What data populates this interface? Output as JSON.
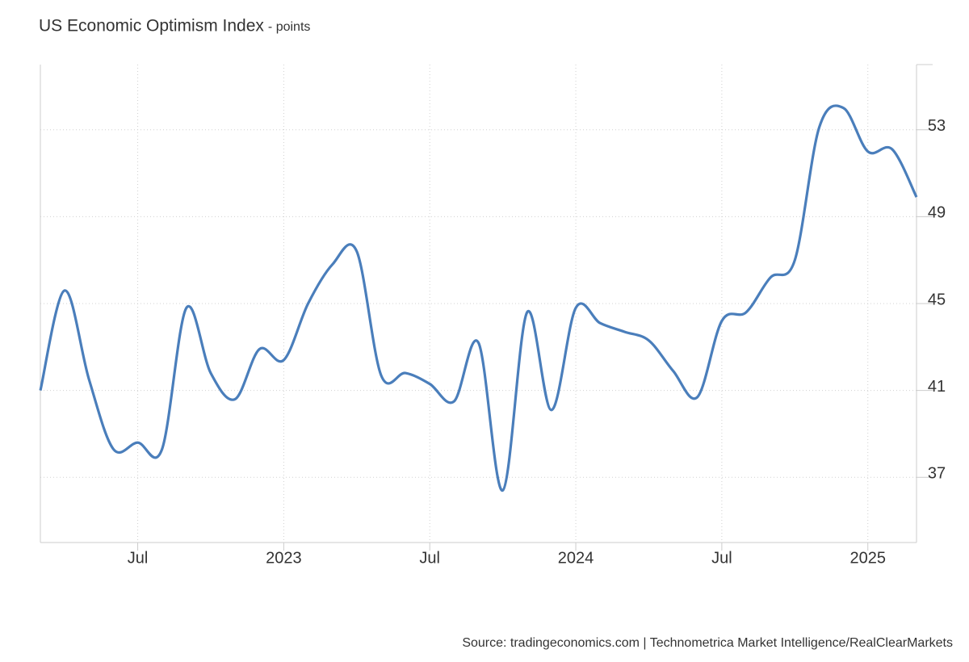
{
  "chart_data": {
    "type": "line",
    "title": "US Economic Optimism Index",
    "subtitle": "- points",
    "source": "Source: tradingeconomics.com | Technometrica Market Intelligence/RealClearMarkets",
    "categories": [
      null,
      null,
      null,
      null,
      "Jul",
      null,
      null,
      null,
      null,
      null,
      "2023",
      null,
      null,
      null,
      null,
      null,
      "Jul",
      null,
      null,
      null,
      null,
      null,
      "2024",
      null,
      null,
      null,
      null,
      null,
      "Jul",
      null,
      null,
      null,
      null,
      null,
      "2025",
      null,
      null
    ],
    "series": [
      {
        "name": "US Economic Optimism Index",
        "color": "#4a7ebb",
        "values": [
          41.0,
          45.6,
          41.5,
          38.3,
          38.6,
          38.3,
          44.8,
          41.8,
          40.6,
          42.9,
          42.4,
          45.0,
          46.8,
          47.4,
          41.7,
          41.8,
          41.3,
          40.5,
          43.2,
          36.4,
          44.6,
          40.1,
          44.8,
          44.1,
          43.7,
          43.3,
          41.9,
          40.7,
          44.2,
          44.6,
          46.2,
          47.0,
          53.1,
          54.0,
          52.0,
          52.1,
          49.9
        ]
      }
    ],
    "ylim": [
      34,
      56
    ],
    "yticks": [
      37,
      41,
      45,
      49,
      53
    ],
    "grid": true
  }
}
